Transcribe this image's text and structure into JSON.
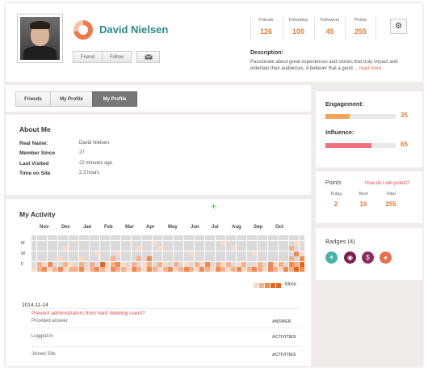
{
  "profile": {
    "name": "David Nielsen",
    "friend_label": "Friend",
    "follow_label": "Follow",
    "message_icon": "envelope-icon",
    "settings_icon": "gear-icon",
    "description_title": "Description:",
    "description_text": "Passionate about great experiences and stories that truly impact and entertain their audiences. A believer that a good ...",
    "read_more": "read more"
  },
  "stats": [
    {
      "label": "Friends",
      "value": "126"
    },
    {
      "label": "Following",
      "value": "100"
    },
    {
      "label": "Followers",
      "value": "45"
    },
    {
      "label": "Points",
      "value": "255"
    }
  ],
  "tabs": [
    {
      "label": "Friends"
    },
    {
      "label": "My Profile"
    },
    {
      "label": "My Profile",
      "active": true
    }
  ],
  "about": {
    "title": "About Me",
    "rows": [
      {
        "label": "Real Name:",
        "value": "David Nielsen"
      },
      {
        "label": "Member Since",
        "value": "27"
      },
      {
        "label": "Last Visited",
        "value": "22 minutes ago"
      },
      {
        "label": "Time on Site",
        "value": "2.3 hours"
      }
    ]
  },
  "activity": {
    "title": "My Activity",
    "plus": "+",
    "months": [
      "Nov",
      "Dec",
      "Jan",
      "Feb",
      "Mar",
      "Apr",
      "May",
      "Jun",
      "Jul",
      "Aug",
      "Sep",
      "Oct"
    ],
    "days": [
      "M",
      "W",
      "F"
    ],
    "more": "More",
    "levels_colors": [
      "#dadada",
      "#fbd9c6",
      "#f6b08b",
      "#f08a52",
      "#e86418"
    ],
    "grid": [
      [
        0,
        0,
        0,
        0,
        0,
        0,
        0,
        0,
        0,
        0,
        0,
        0,
        0,
        0,
        0,
        0,
        0,
        0,
        0,
        0,
        0,
        0,
        0,
        0,
        0,
        0,
        0,
        0,
        0,
        0,
        0,
        0,
        0,
        0,
        0,
        0,
        0,
        0,
        0,
        0,
        0,
        0,
        0,
        0,
        0,
        0,
        0,
        0,
        0,
        0,
        0,
        0
      ],
      [
        0,
        0,
        0,
        0,
        0,
        0,
        0,
        0,
        0,
        0,
        0,
        0,
        0,
        0,
        0,
        0,
        0,
        0,
        0,
        0,
        0,
        0,
        0,
        1,
        0,
        0,
        0,
        0,
        0,
        0,
        0,
        0,
        0,
        0,
        0,
        0,
        1,
        0,
        0,
        0,
        0,
        0,
        0,
        0,
        0,
        0,
        0,
        0,
        0,
        0,
        1,
        0
      ],
      [
        0,
        0,
        0,
        0,
        0,
        0,
        1,
        0,
        0,
        0,
        0,
        0,
        0,
        0,
        0,
        0,
        0,
        0,
        0,
        0,
        1,
        0,
        0,
        0,
        1,
        0,
        0,
        0,
        0,
        0,
        0,
        0,
        0,
        0,
        0,
        0,
        0,
        0,
        1,
        0,
        0,
        0,
        0,
        0,
        0,
        0,
        0,
        0,
        0,
        2,
        0,
        0
      ],
      [
        0,
        0,
        0,
        0,
        0,
        0,
        0,
        0,
        0,
        0,
        0,
        0,
        1,
        0,
        0,
        0,
        1,
        0,
        0,
        0,
        0,
        0,
        0,
        0,
        0,
        0,
        0,
        0,
        0,
        0,
        1,
        0,
        0,
        0,
        0,
        0,
        0,
        0,
        0,
        0,
        0,
        0,
        1,
        0,
        0,
        0,
        0,
        0,
        0,
        0,
        3,
        1
      ],
      [
        0,
        0,
        0,
        0,
        0,
        1,
        0,
        0,
        0,
        1,
        0,
        0,
        0,
        0,
        0,
        2,
        0,
        0,
        0,
        0,
        2,
        0,
        3,
        0,
        0,
        0,
        0,
        0,
        0,
        0,
        0,
        0,
        0,
        0,
        0,
        0,
        0,
        0,
        0,
        0,
        0,
        0,
        0,
        0,
        0,
        0,
        0,
        0,
        0,
        2,
        0,
        3
      ],
      [
        0,
        2,
        1,
        3,
        0,
        0,
        2,
        1,
        0,
        2,
        0,
        2,
        0,
        4,
        1,
        2,
        3,
        1,
        0,
        2,
        0,
        1,
        2,
        0,
        2,
        1,
        0,
        2,
        0,
        1,
        0,
        2,
        1,
        3,
        0,
        2,
        1,
        2,
        0,
        1,
        2,
        0,
        1,
        2,
        0,
        3,
        1,
        2,
        0,
        3,
        2,
        4
      ],
      [
        1,
        2,
        3,
        1,
        2,
        3,
        1,
        2,
        2,
        3,
        1,
        2,
        3,
        2,
        1,
        3,
        2,
        2,
        1,
        3,
        2,
        1,
        3,
        2,
        1,
        2,
        3,
        1,
        2,
        3,
        2,
        1,
        3,
        2,
        1,
        3,
        2,
        1,
        2,
        3,
        1,
        2,
        3,
        2,
        1,
        3,
        2,
        1,
        3,
        2,
        4,
        3
      ]
    ],
    "date": "2014-11-14",
    "link": "Prevent administrators from hard deleting users?",
    "feed": [
      {
        "text": "Provided answer",
        "tag": "ANSWER"
      },
      {
        "text": "Logged-in",
        "tag": "ACTIVITIES"
      },
      {
        "text": "Joined Site",
        "tag": "ACTIVITIES"
      }
    ]
  },
  "engagement": {
    "label": "Engagement:",
    "value": 35,
    "color": "#f6a35a"
  },
  "influence": {
    "label": "Influence:",
    "value": 65,
    "color": "#ee6f7c"
  },
  "points": {
    "title": "Points",
    "link": "How do I win points?",
    "cols": [
      {
        "label": "Today",
        "value": "2"
      },
      {
        "label": "Best",
        "value": "16"
      },
      {
        "label": "Total",
        "value": "255"
      }
    ]
  },
  "badges": {
    "title": "Badges (4)",
    "items": [
      {
        "icon": "tooth-icon",
        "glyph": "✦",
        "color": "#45b3a8"
      },
      {
        "icon": "eye-icon",
        "glyph": "◉",
        "color": "#7a1f4e"
      },
      {
        "icon": "dollar-icon",
        "glyph": "$",
        "color": "#8e2a63"
      },
      {
        "icon": "user-icon",
        "glyph": "●",
        "color": "#e8704a"
      }
    ]
  }
}
